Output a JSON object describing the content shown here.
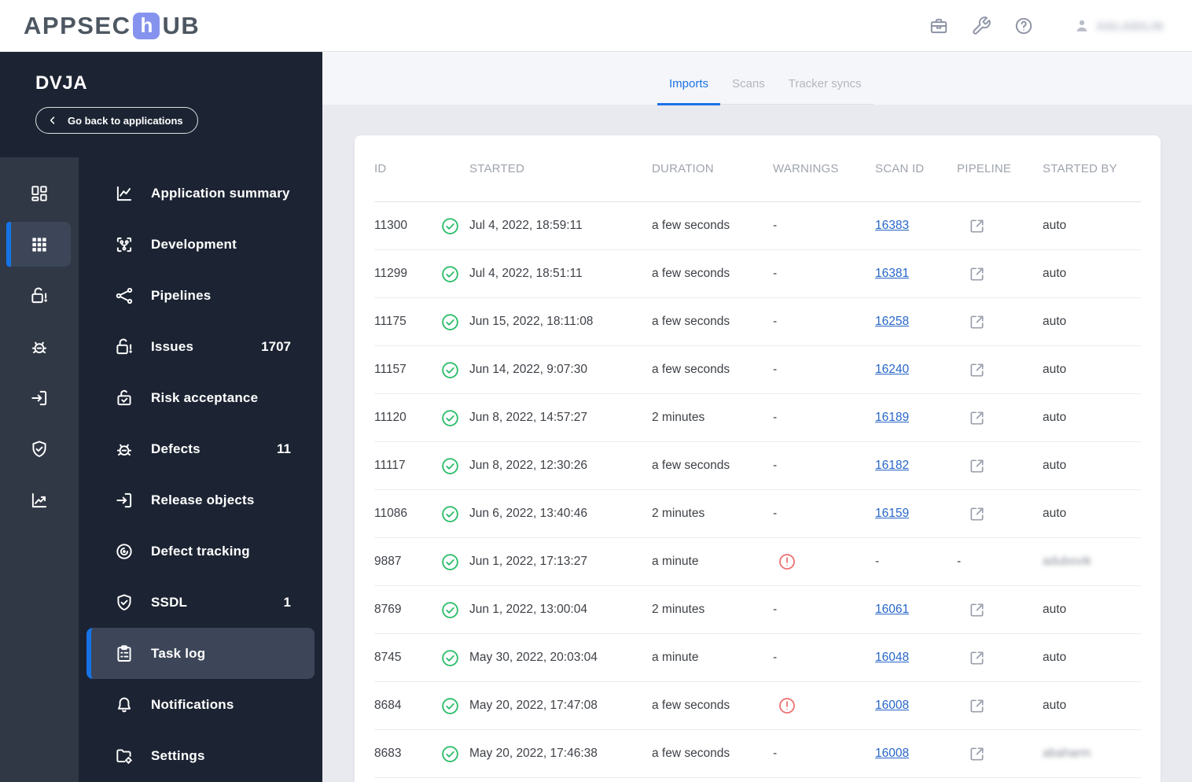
{
  "header": {
    "logo": {
      "part1": "APPSEC",
      "accent_letter": "h",
      "part2": "UB"
    },
    "user": {
      "name": "AGLADILIN",
      "blurred": true
    }
  },
  "sidebar": {
    "app_name": "DVJA",
    "back_button_label": "Go back to applications",
    "rail": [
      {
        "icon": "dashboard-icon",
        "active": false
      },
      {
        "icon": "grid-icon",
        "active": true
      },
      {
        "icon": "unlock-alert-icon",
        "active": false
      },
      {
        "icon": "bug-icon",
        "active": false
      },
      {
        "icon": "export-box-icon",
        "active": false
      },
      {
        "icon": "shield-check-icon",
        "active": false
      },
      {
        "icon": "chart-icon",
        "active": false
      }
    ],
    "items": [
      {
        "label": "Application summary",
        "icon": "chart-line-icon",
        "badge": "",
        "active": false
      },
      {
        "label": "Development",
        "icon": "dev-icon",
        "badge": "",
        "active": false
      },
      {
        "label": "Pipelines",
        "icon": "pipeline-icon",
        "badge": "",
        "active": false
      },
      {
        "label": "Issues",
        "icon": "unlock-alert-icon",
        "badge": "1707",
        "active": false
      },
      {
        "label": "Risk acceptance",
        "icon": "lock-check-icon",
        "badge": "",
        "active": false
      },
      {
        "label": "Defects",
        "icon": "bug-icon",
        "badge": "11",
        "active": false
      },
      {
        "label": "Release objects",
        "icon": "export-box-icon",
        "badge": "",
        "active": false
      },
      {
        "label": "Defect tracking",
        "icon": "tracking-icon",
        "badge": "",
        "active": false
      },
      {
        "label": "SSDL",
        "icon": "shield-check-icon",
        "badge": "1",
        "active": false
      },
      {
        "label": "Task log",
        "icon": "clipboard-icon",
        "badge": "",
        "active": true
      },
      {
        "label": "Notifications",
        "icon": "bell-icon",
        "badge": "",
        "active": false
      },
      {
        "label": "Settings",
        "icon": "folder-gear-icon",
        "badge": "",
        "active": false
      }
    ]
  },
  "tabs": [
    {
      "label": "Imports",
      "active": true
    },
    {
      "label": "Scans",
      "active": false
    },
    {
      "label": "Tracker syncs",
      "active": false
    }
  ],
  "table": {
    "columns": [
      "ID",
      "STARTED",
      "DURATION",
      "WARNINGS",
      "SCAN ID",
      "PIPELINE",
      "STARTED BY"
    ],
    "rows": [
      {
        "id": "11300",
        "status": "success",
        "started": "Jul 4, 2022, 18:59:11",
        "duration": "a few seconds",
        "warning": false,
        "scan_id": "16383",
        "pipeline": true,
        "started_by": "auto",
        "started_by_blurred": false
      },
      {
        "id": "11299",
        "status": "success",
        "started": "Jul 4, 2022, 18:51:11",
        "duration": "a few seconds",
        "warning": false,
        "scan_id": "16381",
        "pipeline": true,
        "started_by": "auto",
        "started_by_blurred": false
      },
      {
        "id": "11175",
        "status": "success",
        "started": "Jun 15, 2022, 18:11:08",
        "duration": "a few seconds",
        "warning": false,
        "scan_id": "16258",
        "pipeline": true,
        "started_by": "auto",
        "started_by_blurred": false
      },
      {
        "id": "11157",
        "status": "success",
        "started": "Jun 14, 2022, 9:07:30",
        "duration": "a few seconds",
        "warning": false,
        "scan_id": "16240",
        "pipeline": true,
        "started_by": "auto",
        "started_by_blurred": false
      },
      {
        "id": "11120",
        "status": "success",
        "started": "Jun 8, 2022, 14:57:27",
        "duration": "2 minutes",
        "warning": false,
        "scan_id": "16189",
        "pipeline": true,
        "started_by": "auto",
        "started_by_blurred": false
      },
      {
        "id": "11117",
        "status": "success",
        "started": "Jun 8, 2022, 12:30:26",
        "duration": "a few seconds",
        "warning": false,
        "scan_id": "16182",
        "pipeline": true,
        "started_by": "auto",
        "started_by_blurred": false
      },
      {
        "id": "11086",
        "status": "success",
        "started": "Jun 6, 2022, 13:40:46",
        "duration": "2 minutes",
        "warning": false,
        "scan_id": "16159",
        "pipeline": true,
        "started_by": "auto",
        "started_by_blurred": false
      },
      {
        "id": "9887",
        "status": "success",
        "started": "Jun 1, 2022, 17:13:27",
        "duration": "a minute",
        "warning": true,
        "scan_id": "",
        "pipeline": false,
        "started_by": "adubovik",
        "started_by_blurred": true
      },
      {
        "id": "8769",
        "status": "success",
        "started": "Jun 1, 2022, 13:00:04",
        "duration": "2 minutes",
        "warning": false,
        "scan_id": "16061",
        "pipeline": true,
        "started_by": "auto",
        "started_by_blurred": false
      },
      {
        "id": "8745",
        "status": "success",
        "started": "May 30, 2022, 20:03:04",
        "duration": "a minute",
        "warning": false,
        "scan_id": "16048",
        "pipeline": true,
        "started_by": "auto",
        "started_by_blurred": false
      },
      {
        "id": "8684",
        "status": "success",
        "started": "May 20, 2022, 17:47:08",
        "duration": "a few seconds",
        "warning": true,
        "scan_id": "16008",
        "pipeline": true,
        "started_by": "auto",
        "started_by_blurred": false
      },
      {
        "id": "8683",
        "status": "success",
        "started": "May 20, 2022, 17:46:38",
        "duration": "a few seconds",
        "warning": false,
        "scan_id": "16008",
        "pipeline": true,
        "started_by": "abaharm",
        "started_by_blurred": true
      }
    ]
  },
  "colors": {
    "accent_blue": "#1673e6",
    "tab_active_blue": "#1a73e8",
    "sidebar_navy": "#1c2433",
    "rail_gray": "#313845",
    "active_item_bg": "#3c4658",
    "success_green": "#2ebd6b",
    "warning_red": "#ef7070",
    "link_blue": "#2766c8",
    "logo_accent": "#8693ee",
    "content_bg": "#e9e9f0"
  }
}
